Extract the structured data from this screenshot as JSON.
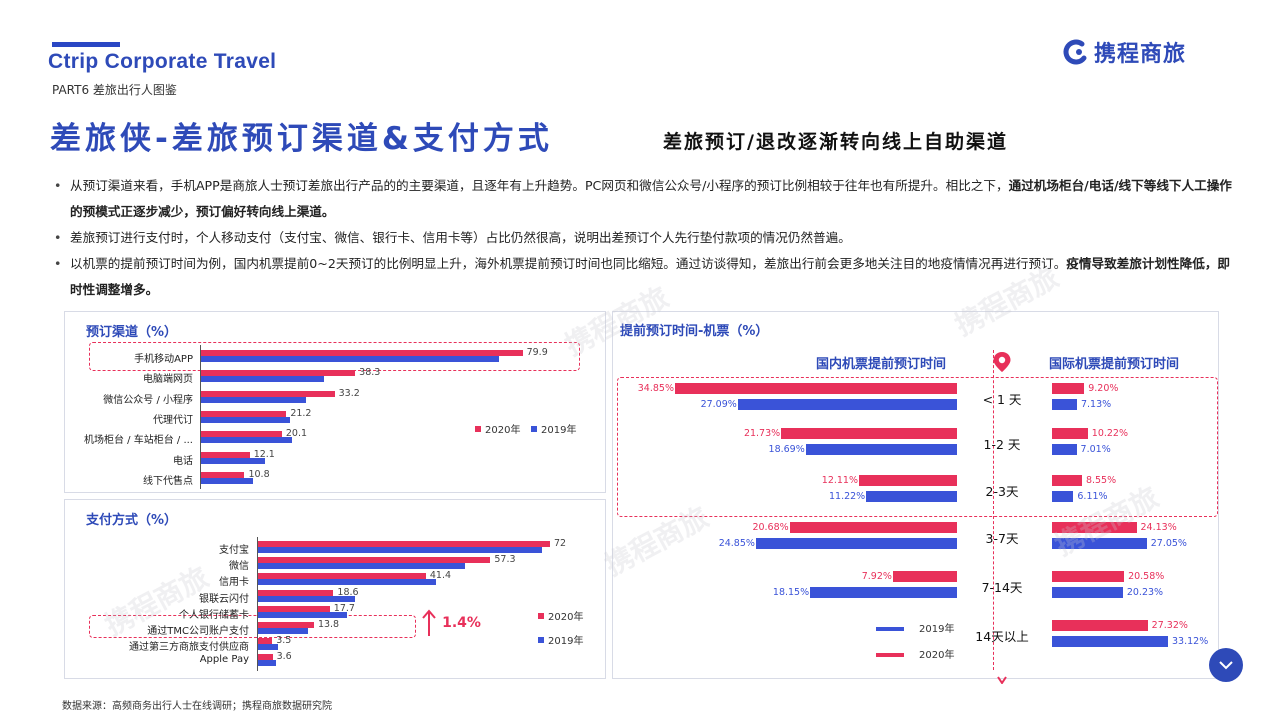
{
  "header": {
    "brand": "Ctrip Corporate Travel",
    "part": "PART6 差旅出行人图鉴",
    "logo_text": "携程商旅",
    "title": "差旅侠-差旅预订渠道&支付方式",
    "subtitle": "差旅预订/退改逐渐转向线上自助渠道"
  },
  "bullets": [
    {
      "text": "从预订渠道来看，手机APP是商旅人士预订差旅出行产品的的主要渠道，且逐年有上升趋势。PC网页和微信公众号/小程序的预订比例相较于往年也有所提升。相比之下，",
      "bold": "通过机场柜台/电话/线下等线下人工操作的预模式正逐步减少，预订偏好转向线上渠道。"
    },
    {
      "text": "差旅预订进行支付时，个人移动支付（支付宝、微信、银行卡、信用卡等）占比仍然很高，说明出差预订个人先行垫付款项的情况仍然普遍。",
      "bold": ""
    },
    {
      "text": "以机票的提前预订时间为例，国内机票提前0~2天预订的比例明显上升，海外机票提前预订时间也同比缩短。通过访谈得知，差旅出行前会更多地关注目的地疫情情况再进行预订。",
      "bold": "疫情导致差旅计划性降低，即时性调整增多。"
    }
  ],
  "colors": {
    "y2020": "#e8305a",
    "y2019": "#3a53d8",
    "accent": "#2e4ab8"
  },
  "legend": {
    "y2020": "2020年",
    "y2019": "2019年"
  },
  "chart_data": [
    {
      "type": "bar",
      "title": "预订渠道（%）",
      "categories": [
        "手机移动APP",
        "电脑端网页",
        "微信公众号 / 小程序",
        "代理代订",
        "机场柜台 / 车站柜台 / ...",
        "电话",
        "线下代售点"
      ],
      "series": [
        {
          "name": "2020年",
          "values": [
            79.9,
            38.3,
            33.2,
            21.2,
            20.1,
            12.1,
            10.8
          ]
        },
        {
          "name": "2019年",
          "values": [
            74,
            30.5,
            26,
            22,
            22.5,
            16,
            13
          ]
        }
      ],
      "labels": [
        "79.9",
        "38.3",
        "33.2",
        "21.2",
        "20.1",
        "12.1",
        "10.8"
      ],
      "xlim": [
        0,
        80
      ]
    },
    {
      "type": "bar",
      "title": "支付方式（%）",
      "categories": [
        "支付宝",
        "微信",
        "信用卡",
        "银联云闪付",
        "个人银行储蓄卡",
        "通过TMC公司账户支付",
        "通过第三方商旅支付供应商",
        "Apple Pay"
      ],
      "series": [
        {
          "name": "2020年",
          "values": [
            72,
            57.3,
            41.4,
            18.6,
            17.7,
            13.8,
            3.5,
            3.6
          ]
        },
        {
          "name": "2019年",
          "values": [
            70,
            51,
            44,
            24,
            22,
            12.4,
            5,
            4.5
          ]
        }
      ],
      "labels": [
        "72",
        "57.3",
        "41.4",
        "18.6",
        "17.7",
        "13.8",
        "3.5",
        "3.6"
      ],
      "annotation": "1.4%",
      "xlim": [
        0,
        72
      ]
    },
    {
      "type": "bar",
      "title": "提前预订时间-机票（%）",
      "categories": [
        "< 1 天",
        "1-2 天",
        "2-3天",
        "3-7天",
        "7-14天",
        "14天以上"
      ],
      "domestic_title": "国内机票提前预订时间",
      "international_title": "国际机票提前预订时间",
      "domestic": {
        "2020年": [
          34.85,
          21.73,
          12.11,
          20.68,
          7.92,
          2.71
        ],
        "2019年": [
          27.09,
          18.69,
          11.22,
          24.85,
          18.15,
          0
        ]
      },
      "domestic_labels": {
        "2020年": [
          "34.85%",
          "21.73%",
          "12.11%",
          "20.68%",
          "7.92%",
          ""
        ],
        "2019年": [
          "27.09%",
          "18.69%",
          "11.22%",
          "24.85%",
          "18.15%",
          ""
        ]
      },
      "international": {
        "2020年": [
          9.2,
          10.22,
          8.55,
          24.13,
          20.58,
          27.32
        ],
        "2019年": [
          7.13,
          7.01,
          6.11,
          27.05,
          20.23,
          33.12
        ]
      },
      "international_labels": {
        "2020年": [
          "9.20%",
          "10.22%",
          "8.55%",
          "24.13%",
          "20.58%",
          "27.32%"
        ],
        "2019年": [
          "7.13%",
          "7.01%",
          "6.11%",
          "27.05%",
          "20.23%",
          "33.12%"
        ]
      }
    }
  ],
  "source": "数据来源：高频商务出行人士在线调研；携程商旅数据研究院"
}
